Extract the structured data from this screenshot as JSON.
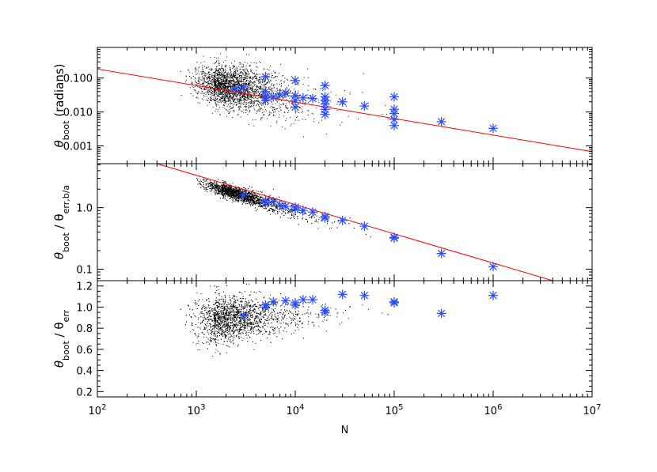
{
  "chart_data": [
    {
      "panel": "top",
      "type": "scatter",
      "xlabel": "",
      "ylabel_parts": [
        "θ",
        "boot",
        " (radians)",
        ""
      ],
      "x_scale": "log",
      "xlim": [
        100,
        10000000
      ],
      "y_scale": "log",
      "ylim": [
        0.0003,
        0.8
      ],
      "yticks": [
        0.001,
        0.01,
        0.1
      ],
      "ytick_labels": [
        "0.001",
        "0.010",
        "0.100"
      ],
      "fit_line": {
        "color": "#ff0000",
        "points": [
          [
            100,
            0.185
          ],
          [
            10000000,
            0.00068
          ]
        ]
      },
      "cloud": {
        "color": "#000000",
        "x_center": 1500,
        "y_center": 0.065,
        "x_spread_dex": 0.35,
        "y_spread_dex": 0.28,
        "x_min": 300,
        "x_max": 3000000,
        "trend": -0.5,
        "count": 2600
      },
      "series": [
        {
          "marker": "asterisk",
          "color": "#2a4bff",
          "points": [
            [
              2500,
              0.048
            ],
            [
              3000,
              0.052
            ],
            [
              5000,
              0.11
            ],
            [
              5000,
              0.04
            ],
            [
              5000,
              0.03
            ],
            [
              5000,
              0.026
            ],
            [
              5000,
              0.022
            ],
            [
              6000,
              0.028
            ],
            [
              7000,
              0.032
            ],
            [
              8000,
              0.036
            ],
            [
              10000,
              0.085
            ],
            [
              10000,
              0.03
            ],
            [
              10000,
              0.022
            ],
            [
              10000,
              0.014
            ],
            [
              12000,
              0.026
            ],
            [
              15000,
              0.025
            ],
            [
              20000,
              0.06
            ],
            [
              20000,
              0.028
            ],
            [
              20000,
              0.022
            ],
            [
              20000,
              0.017
            ],
            [
              20000,
              0.012
            ],
            [
              20000,
              0.0085
            ],
            [
              30000,
              0.02
            ],
            [
              50000,
              0.015
            ],
            [
              100000,
              0.028
            ],
            [
              100000,
              0.012
            ],
            [
              100000,
              0.009
            ],
            [
              100000,
              0.006
            ],
            [
              100000,
              0.004
            ],
            [
              300000,
              0.0052
            ],
            [
              1000000,
              0.0033
            ]
          ]
        }
      ]
    },
    {
      "panel": "middle",
      "type": "scatter",
      "xlabel": "",
      "ylabel_parts": [
        "θ",
        "boot",
        " / θ",
        "err,b/a"
      ],
      "x_scale": "log",
      "xlim": [
        100,
        10000000
      ],
      "y_scale": "log",
      "ylim": [
        0.065,
        5.2
      ],
      "yticks": [
        0.1,
        1.0
      ],
      "ytick_labels": [
        "0.1",
        "1.0"
      ],
      "fit_line": {
        "color": "#ff0000",
        "points": [
          [
            400,
            5.2
          ],
          [
            4000000,
            0.065
          ]
        ]
      },
      "cloud": {
        "color": "#000000",
        "x_center": 1800,
        "y_center": 2.0,
        "x_spread_dex": 0.3,
        "y_spread_dex": 0.05,
        "x_min": 1000,
        "x_max": 700000,
        "trend": -0.5,
        "count": 2600
      },
      "series": [
        {
          "marker": "asterisk",
          "color": "#2a4bff",
          "points": [
            [
              3000,
              1.6
            ],
            [
              5000,
              1.3
            ],
            [
              5000,
              1.2
            ],
            [
              6000,
              1.25
            ],
            [
              7000,
              1.1
            ],
            [
              8000,
              1.05
            ],
            [
              10000,
              1.02
            ],
            [
              10000,
              0.95
            ],
            [
              12000,
              0.9
            ],
            [
              15000,
              0.85
            ],
            [
              20000,
              0.72
            ],
            [
              20000,
              0.68
            ],
            [
              30000,
              0.62
            ],
            [
              50000,
              0.5
            ],
            [
              100000,
              0.33
            ],
            [
              100000,
              0.32
            ],
            [
              300000,
              0.18
            ],
            [
              1000000,
              0.11
            ]
          ]
        }
      ]
    },
    {
      "panel": "bottom",
      "type": "scatter",
      "xlabel": "N",
      "ylabel_parts": [
        "θ",
        "boot",
        " / θ",
        "err"
      ],
      "x_scale": "log",
      "xlim": [
        100,
        10000000
      ],
      "xticks": [
        100,
        1000,
        10000,
        100000,
        1000000,
        10000000
      ],
      "xtick_labels": [
        [
          "10",
          "2"
        ],
        [
          "10",
          "3"
        ],
        [
          "10",
          "4"
        ],
        [
          "10",
          "5"
        ],
        [
          "10",
          "6"
        ],
        [
          "10",
          "7"
        ]
      ],
      "y_scale": "linear",
      "ylim": [
        0.15,
        1.25
      ],
      "yticks": [
        0.2,
        0.4,
        0.6,
        0.8,
        1.0,
        1.2
      ],
      "ytick_labels": [
        "0.2",
        "0.4",
        "0.6",
        "0.8",
        "1.0",
        "1.2"
      ],
      "cloud": {
        "color": "#000000",
        "x_center": 1500,
        "y_center": 0.88,
        "x_spread_dex": 0.35,
        "y_spread_lin": 0.07,
        "x_min": 300,
        "x_max": 3000000,
        "trend": 0,
        "count": 2600
      },
      "series": [
        {
          "marker": "asterisk",
          "color": "#2a4bff",
          "points": [
            [
              3000,
              0.92
            ],
            [
              5000,
              1.02
            ],
            [
              5000,
              1.0
            ],
            [
              6000,
              1.05
            ],
            [
              8000,
              1.06
            ],
            [
              10000,
              1.04
            ],
            [
              10000,
              1.02
            ],
            [
              12000,
              1.07
            ],
            [
              15000,
              1.07
            ],
            [
              20000,
              0.97
            ],
            [
              20000,
              0.95
            ],
            [
              30000,
              1.12
            ],
            [
              50000,
              1.11
            ],
            [
              100000,
              1.05
            ],
            [
              100000,
              1.04
            ],
            [
              300000,
              0.94
            ],
            [
              1000000,
              1.11
            ]
          ]
        }
      ]
    }
  ]
}
